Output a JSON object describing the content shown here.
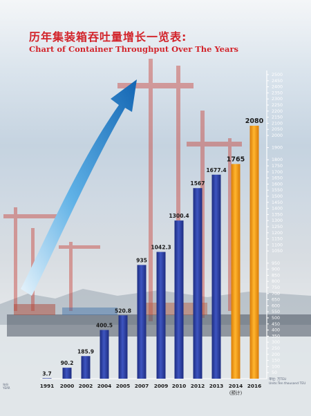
{
  "header": {
    "title_cn": "历年集装箱吞吐量增长一览表:",
    "title_en": "Chart of Container Throughput Over The Years"
  },
  "notes": {
    "unit_cn": "单位: 万TEU",
    "unit_en": "Units:Ten thousand TEU",
    "year_cn": "年份",
    "year_en": "YEAR"
  },
  "colors": {
    "actual_bar": "#2b3f9e",
    "forecast_bar": "#f39a14",
    "arrow": "#1f80c6",
    "axis": "#ffffff"
  },
  "chart_data": {
    "type": "bar",
    "categories": [
      "1991",
      "2000",
      "2002",
      "2004",
      "2005",
      "2007",
      "2009",
      "2010",
      "2012",
      "2013",
      "2014",
      "2016"
    ],
    "category_sublabels": [
      "",
      "",
      "",
      "",
      "",
      "",
      "",
      "",
      "",
      "",
      "(预计)",
      ""
    ],
    "values": [
      3.7,
      90.2,
      185.9,
      400.5,
      520.8,
      935,
      1042.3,
      1300.4,
      1567,
      1677.4,
      1765,
      2080
    ],
    "value_labels": [
      "3.7",
      "90.2",
      "185.9",
      "400.5",
      "520.8",
      "935",
      "1042.3",
      "1300.4",
      "1567",
      "1677.4",
      "1765",
      "2080"
    ],
    "forecast": [
      false,
      false,
      false,
      false,
      false,
      false,
      false,
      false,
      false,
      false,
      true,
      true
    ],
    "y_ticks": [
      50,
      100,
      150,
      200,
      250,
      300,
      350,
      400,
      450,
      500,
      550,
      600,
      650,
      700,
      750,
      800,
      850,
      900,
      950,
      1050,
      1100,
      1150,
      1200,
      1250,
      1300,
      1350,
      1400,
      1450,
      1500,
      1550,
      1600,
      1650,
      1700,
      1750,
      1800,
      1900,
      2000,
      2050,
      2100,
      2150,
      2200,
      2250,
      2300,
      2350,
      2400,
      2450,
      2500
    ],
    "y_tick_labels": [
      "50",
      "100",
      "150",
      "200",
      "250",
      "300",
      "350",
      "400",
      "450",
      "500",
      "550",
      "600",
      "650",
      "700",
      "750",
      "800",
      "850",
      "900",
      "950",
      "1050",
      "1100",
      "1150",
      "1200",
      "1250",
      "1300",
      "1350",
      "1400",
      "1450",
      "1500",
      "1550",
      "1600",
      "1650",
      "1700",
      "1750",
      "1800",
      "1900",
      "2000",
      "2050",
      "2100",
      "2150",
      "2200",
      "2250",
      "2300",
      "2350",
      "2400",
      "2450",
      "2500"
    ],
    "ylim": [
      0,
      2500
    ]
  }
}
